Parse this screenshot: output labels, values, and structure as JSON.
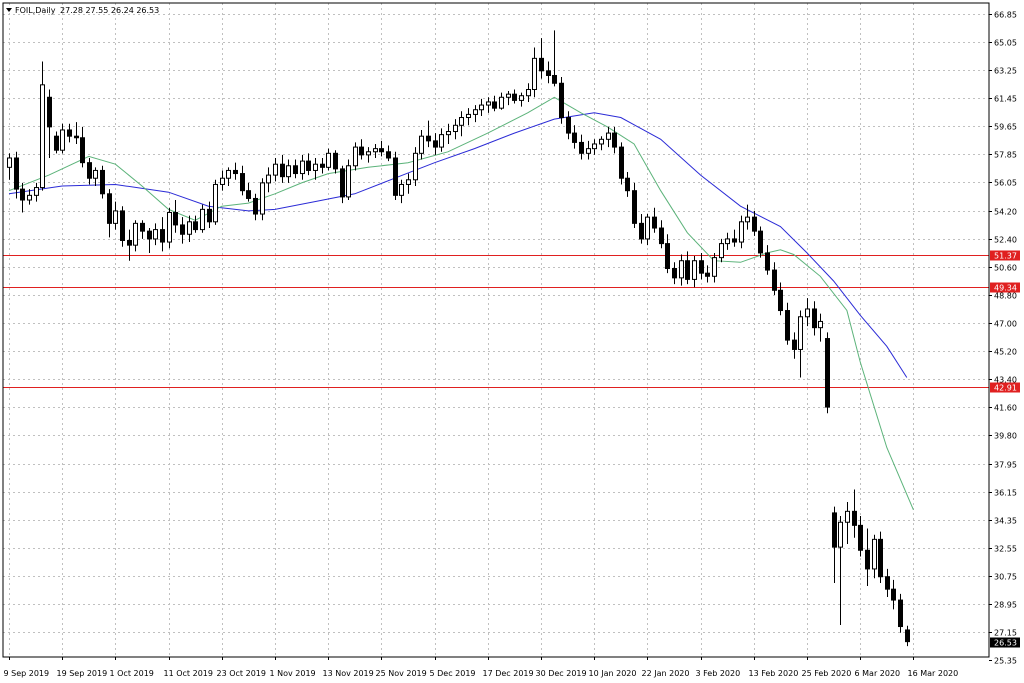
{
  "header": {
    "symbol_label": "FOIL,Daily",
    "ohlc_label": "27.28 27.55 26.24 26.53"
  },
  "chart_data": {
    "type": "candlestick",
    "title": "FOIL,Daily",
    "ylim": [
      25.35,
      67.8
    ],
    "y_ticks": [
      "66.85",
      "65.05",
      "63.25",
      "61.45",
      "59.65",
      "57.85",
      "56.05",
      "54.20",
      "52.40",
      "50.60",
      "48.80",
      "47.00",
      "45.20",
      "43.40",
      "41.60",
      "39.80",
      "37.95",
      "36.15",
      "34.35",
      "32.55",
      "30.75",
      "28.95",
      "27.15",
      "25.35"
    ],
    "x_ticks": [
      {
        "label": "9 Sep 2019",
        "index": 0
      },
      {
        "label": "19 Sep 2019",
        "index": 8
      },
      {
        "label": "1 Oct 2019",
        "index": 16
      },
      {
        "label": "11 Oct 2019",
        "index": 24
      },
      {
        "label": "23 Oct 2019",
        "index": 32
      },
      {
        "label": "1 Nov 2019",
        "index": 40
      },
      {
        "label": "13 Nov 2019",
        "index": 48
      },
      {
        "label": "25 Nov 2019",
        "index": 56
      },
      {
        "label": "5 Dec 2019",
        "index": 64
      },
      {
        "label": "17 Dec 2019",
        "index": 72
      },
      {
        "label": "30 Dec 2019",
        "index": 80
      },
      {
        "label": "10 Jan 2020",
        "index": 88
      },
      {
        "label": "22 Jan 2020",
        "index": 96
      },
      {
        "label": "3 Feb 2020",
        "index": 104
      },
      {
        "label": "13 Feb 2020",
        "index": 112
      },
      {
        "label": "25 Feb 2020",
        "index": 120
      },
      {
        "label": "6 Mar 2020",
        "index": 128
      },
      {
        "label": "16 Mar 2020",
        "index": 136
      }
    ],
    "levels": [
      {
        "value": 51.37,
        "label": "51.37"
      },
      {
        "value": 49.34,
        "label": "49.34"
      },
      {
        "value": 42.91,
        "label": "42.91"
      }
    ],
    "last_price": {
      "value": 26.53,
      "label": "26.53"
    },
    "grid": true,
    "candles": [
      [
        57.0,
        57.9,
        56.2,
        57.6
      ],
      [
        57.6,
        58.0,
        55.0,
        55.6
      ],
      [
        55.6,
        56.0,
        54.1,
        54.9
      ],
      [
        54.9,
        55.6,
        54.6,
        55.2
      ],
      [
        55.2,
        56.0,
        54.8,
        55.7
      ],
      [
        55.7,
        63.8,
        55.5,
        62.3
      ],
      [
        61.5,
        62.0,
        57.6,
        59.6
      ],
      [
        59.0,
        59.3,
        57.9,
        58.1
      ],
      [
        58.1,
        59.8,
        57.9,
        59.4
      ],
      [
        59.4,
        59.8,
        58.6,
        59.0
      ],
      [
        59.0,
        59.9,
        58.5,
        58.9
      ],
      [
        58.9,
        59.6,
        57.0,
        57.3
      ],
      [
        57.3,
        57.6,
        55.9,
        56.3
      ],
      [
        56.3,
        57.0,
        55.8,
        56.8
      ],
      [
        56.8,
        57.1,
        55.0,
        55.3
      ],
      [
        55.3,
        55.6,
        52.5,
        53.4
      ],
      [
        53.4,
        54.8,
        53.0,
        54.2
      ],
      [
        54.2,
        54.5,
        51.9,
        52.3
      ],
      [
        52.3,
        53.0,
        51.0,
        52.0
      ],
      [
        52.0,
        53.6,
        51.6,
        53.4
      ],
      [
        53.4,
        53.6,
        52.4,
        52.9
      ],
      [
        52.9,
        53.1,
        51.5,
        52.4
      ],
      [
        52.4,
        53.4,
        52.0,
        53.0
      ],
      [
        53.0,
        53.8,
        51.6,
        52.2
      ],
      [
        52.2,
        54.4,
        51.8,
        54.1
      ],
      [
        54.1,
        54.9,
        52.8,
        53.3
      ],
      [
        53.3,
        53.8,
        52.1,
        52.7
      ],
      [
        52.7,
        53.9,
        52.2,
        53.5
      ],
      [
        53.5,
        53.9,
        52.8,
        53.0
      ],
      [
        53.0,
        54.6,
        52.8,
        54.3
      ],
      [
        54.3,
        54.8,
        53.1,
        53.5
      ],
      [
        53.5,
        56.2,
        53.3,
        55.9
      ],
      [
        55.9,
        56.8,
        55.5,
        56.3
      ],
      [
        56.3,
        57.0,
        55.8,
        56.8
      ],
      [
        56.8,
        57.3,
        56.2,
        56.6
      ],
      [
        56.6,
        57.1,
        55.2,
        55.5
      ],
      [
        55.5,
        56.0,
        54.8,
        55.0
      ],
      [
        55.0,
        55.3,
        53.6,
        54.0
      ],
      [
        54.0,
        56.3,
        53.6,
        56.0
      ],
      [
        56.0,
        57.0,
        55.4,
        56.5
      ],
      [
        56.5,
        57.6,
        56.1,
        57.2
      ],
      [
        57.2,
        57.8,
        56.0,
        56.4
      ],
      [
        56.4,
        57.5,
        56.0,
        57.1
      ],
      [
        57.1,
        57.5,
        56.3,
        56.6
      ],
      [
        56.6,
        57.8,
        56.2,
        57.4
      ],
      [
        57.4,
        57.9,
        56.5,
        56.8
      ],
      [
        56.8,
        57.6,
        56.2,
        57.2
      ],
      [
        57.2,
        57.6,
        56.6,
        57.0
      ],
      [
        57.0,
        58.2,
        56.8,
        57.9
      ],
      [
        57.9,
        58.1,
        56.6,
        56.9
      ],
      [
        56.9,
        57.1,
        54.7,
        55.1
      ],
      [
        55.1,
        57.5,
        54.9,
        57.1
      ],
      [
        57.1,
        58.6,
        56.8,
        58.3
      ],
      [
        58.3,
        58.8,
        57.5,
        57.8
      ],
      [
        57.8,
        58.3,
        57.3,
        58.0
      ],
      [
        58.0,
        58.5,
        57.6,
        58.2
      ],
      [
        58.2,
        58.7,
        57.7,
        58.0
      ],
      [
        58.0,
        58.4,
        57.4,
        57.6
      ],
      [
        57.6,
        58.0,
        54.9,
        55.2
      ],
      [
        55.2,
        56.2,
        54.7,
        55.9
      ],
      [
        55.9,
        56.6,
        55.3,
        56.2
      ],
      [
        56.2,
        58.3,
        55.8,
        57.9
      ],
      [
        57.9,
        59.4,
        57.5,
        59.0
      ],
      [
        59.0,
        60.0,
        58.3,
        58.7
      ],
      [
        58.7,
        59.2,
        57.8,
        58.3
      ],
      [
        58.3,
        59.5,
        58.0,
        59.1
      ],
      [
        59.1,
        59.8,
        58.5,
        59.3
      ],
      [
        59.3,
        60.1,
        58.8,
        59.7
      ],
      [
        59.7,
        60.6,
        59.0,
        60.2
      ],
      [
        60.2,
        60.8,
        59.7,
        60.4
      ],
      [
        60.4,
        61.0,
        59.9,
        60.7
      ],
      [
        60.7,
        61.4,
        60.3,
        61.0
      ],
      [
        61.0,
        61.5,
        60.5,
        61.2
      ],
      [
        61.2,
        61.6,
        60.6,
        60.8
      ],
      [
        60.8,
        61.8,
        60.7,
        61.5
      ],
      [
        61.5,
        61.9,
        61.0,
        61.7
      ],
      [
        61.7,
        62.0,
        61.1,
        61.3
      ],
      [
        61.3,
        61.8,
        60.9,
        61.6
      ],
      [
        61.6,
        62.4,
        61.2,
        62.0
      ],
      [
        62.0,
        64.7,
        61.5,
        64.0
      ],
      [
        64.0,
        65.3,
        62.7,
        63.2
      ],
      [
        63.2,
        63.8,
        62.4,
        62.9
      ],
      [
        62.9,
        65.8,
        62.2,
        62.4
      ],
      [
        62.4,
        62.8,
        59.8,
        60.2
      ],
      [
        60.2,
        60.6,
        58.8,
        59.2
      ],
      [
        59.2,
        59.7,
        58.2,
        58.6
      ],
      [
        58.6,
        59.1,
        57.5,
        57.9
      ],
      [
        57.9,
        58.7,
        57.5,
        58.2
      ],
      [
        58.2,
        58.8,
        57.8,
        58.5
      ],
      [
        58.5,
        59.0,
        58.1,
        58.8
      ],
      [
        58.8,
        59.6,
        58.3,
        59.2
      ],
      [
        59.2,
        59.6,
        57.9,
        58.3
      ],
      [
        58.3,
        58.6,
        55.9,
        56.3
      ],
      [
        56.3,
        56.7,
        55.1,
        55.5
      ],
      [
        55.5,
        56.0,
        53.1,
        53.4
      ],
      [
        53.4,
        54.0,
        52.1,
        52.4
      ],
      [
        52.4,
        54.0,
        52.0,
        53.8
      ],
      [
        53.8,
        54.4,
        52.8,
        53.1
      ],
      [
        53.1,
        53.6,
        51.8,
        52.1
      ],
      [
        52.1,
        52.7,
        50.2,
        50.5
      ],
      [
        50.5,
        50.9,
        49.5,
        49.9
      ],
      [
        49.9,
        51.4,
        49.4,
        51.0
      ],
      [
        51.0,
        51.6,
        49.5,
        49.8
      ],
      [
        49.8,
        51.3,
        49.3,
        51.0
      ],
      [
        51.0,
        51.5,
        49.8,
        50.2
      ],
      [
        50.2,
        50.7,
        49.6,
        50.0
      ],
      [
        50.0,
        51.5,
        49.6,
        51.2
      ],
      [
        51.2,
        52.4,
        50.9,
        52.1
      ],
      [
        52.1,
        52.8,
        51.7,
        52.4
      ],
      [
        52.4,
        53.0,
        51.9,
        52.2
      ],
      [
        52.2,
        53.9,
        51.8,
        53.5
      ],
      [
        53.5,
        54.6,
        53.0,
        53.8
      ],
      [
        53.8,
        54.2,
        52.6,
        52.9
      ],
      [
        52.9,
        53.2,
        51.2,
        51.5
      ],
      [
        51.5,
        52.0,
        50.1,
        50.4
      ],
      [
        50.4,
        50.9,
        48.8,
        49.1
      ],
      [
        49.1,
        49.6,
        47.5,
        47.8
      ],
      [
        47.8,
        48.3,
        45.6,
        45.9
      ],
      [
        45.9,
        46.4,
        44.7,
        45.3
      ],
      [
        45.3,
        47.8,
        43.5,
        47.4
      ],
      [
        47.4,
        48.6,
        46.8,
        47.9
      ],
      [
        47.9,
        48.4,
        46.2,
        46.7
      ],
      [
        46.7,
        47.6,
        45.8,
        47.1
      ],
      [
        46.0,
        46.4,
        41.2,
        41.6
      ],
      [
        34.8,
        35.2,
        30.3,
        32.6
      ],
      [
        32.6,
        34.6,
        27.6,
        34.2
      ],
      [
        34.2,
        35.5,
        32.8,
        34.9
      ],
      [
        34.9,
        36.3,
        33.2,
        34.0
      ],
      [
        34.0,
        34.6,
        32.0,
        32.4
      ],
      [
        32.4,
        33.8,
        30.1,
        31.2
      ],
      [
        31.2,
        33.4,
        30.6,
        33.1
      ],
      [
        33.1,
        33.6,
        30.3,
        30.7
      ],
      [
        30.7,
        31.2,
        29.4,
        29.9
      ],
      [
        29.9,
        30.5,
        28.6,
        29.2
      ],
      [
        29.2,
        29.6,
        27.1,
        27.5
      ],
      [
        27.28,
        27.55,
        26.24,
        26.53
      ]
    ],
    "ma_fast": [
      [
        0,
        55.5
      ],
      [
        6,
        56.5
      ],
      [
        12,
        57.7
      ],
      [
        16,
        57.2
      ],
      [
        20,
        55.8
      ],
      [
        24,
        54.3
      ],
      [
        28,
        53.6
      ],
      [
        32,
        54.5
      ],
      [
        36,
        54.7
      ],
      [
        40,
        55.3
      ],
      [
        44,
        56.0
      ],
      [
        48,
        56.6
      ],
      [
        54,
        57.0
      ],
      [
        60,
        57.3
      ],
      [
        66,
        58.0
      ],
      [
        72,
        59.2
      ],
      [
        78,
        60.5
      ],
      [
        82,
        61.5
      ],
      [
        86,
        60.5
      ],
      [
        90,
        59.6
      ],
      [
        94,
        58.5
      ],
      [
        98,
        55.5
      ],
      [
        102,
        52.8
      ],
      [
        106,
        51.0
      ],
      [
        110,
        50.9
      ],
      [
        114,
        51.5
      ],
      [
        116,
        51.7
      ],
      [
        118,
        51.4
      ],
      [
        122,
        50.0
      ],
      [
        126,
        47.8
      ],
      [
        128,
        44.5
      ],
      [
        132,
        39.0
      ],
      [
        136,
        35.0
      ]
    ],
    "ma_slow": [
      [
        0,
        55.3
      ],
      [
        8,
        55.8
      ],
      [
        16,
        55.9
      ],
      [
        24,
        55.4
      ],
      [
        30,
        54.5
      ],
      [
        36,
        54.2
      ],
      [
        40,
        54.3
      ],
      [
        46,
        54.8
      ],
      [
        52,
        55.3
      ],
      [
        58,
        56.3
      ],
      [
        64,
        57.3
      ],
      [
        70,
        58.2
      ],
      [
        76,
        59.2
      ],
      [
        82,
        60.1
      ],
      [
        88,
        60.5
      ],
      [
        92,
        60.2
      ],
      [
        98,
        58.8
      ],
      [
        104,
        56.5
      ],
      [
        110,
        54.5
      ],
      [
        116,
        53.2
      ],
      [
        120,
        51.5
      ],
      [
        124,
        49.7
      ],
      [
        128,
        47.5
      ],
      [
        132,
        45.5
      ],
      [
        135,
        43.5
      ]
    ],
    "colors": {
      "bull_fill": "#ffffff",
      "bear_fill": "#000000",
      "candle_outline": "#000000",
      "ma_fast": "#5cb37a",
      "ma_slow": "#2b2bd6",
      "level_line": "#e02020",
      "grid": "#c0c0c0",
      "last_price_bg": "#000000"
    }
  }
}
